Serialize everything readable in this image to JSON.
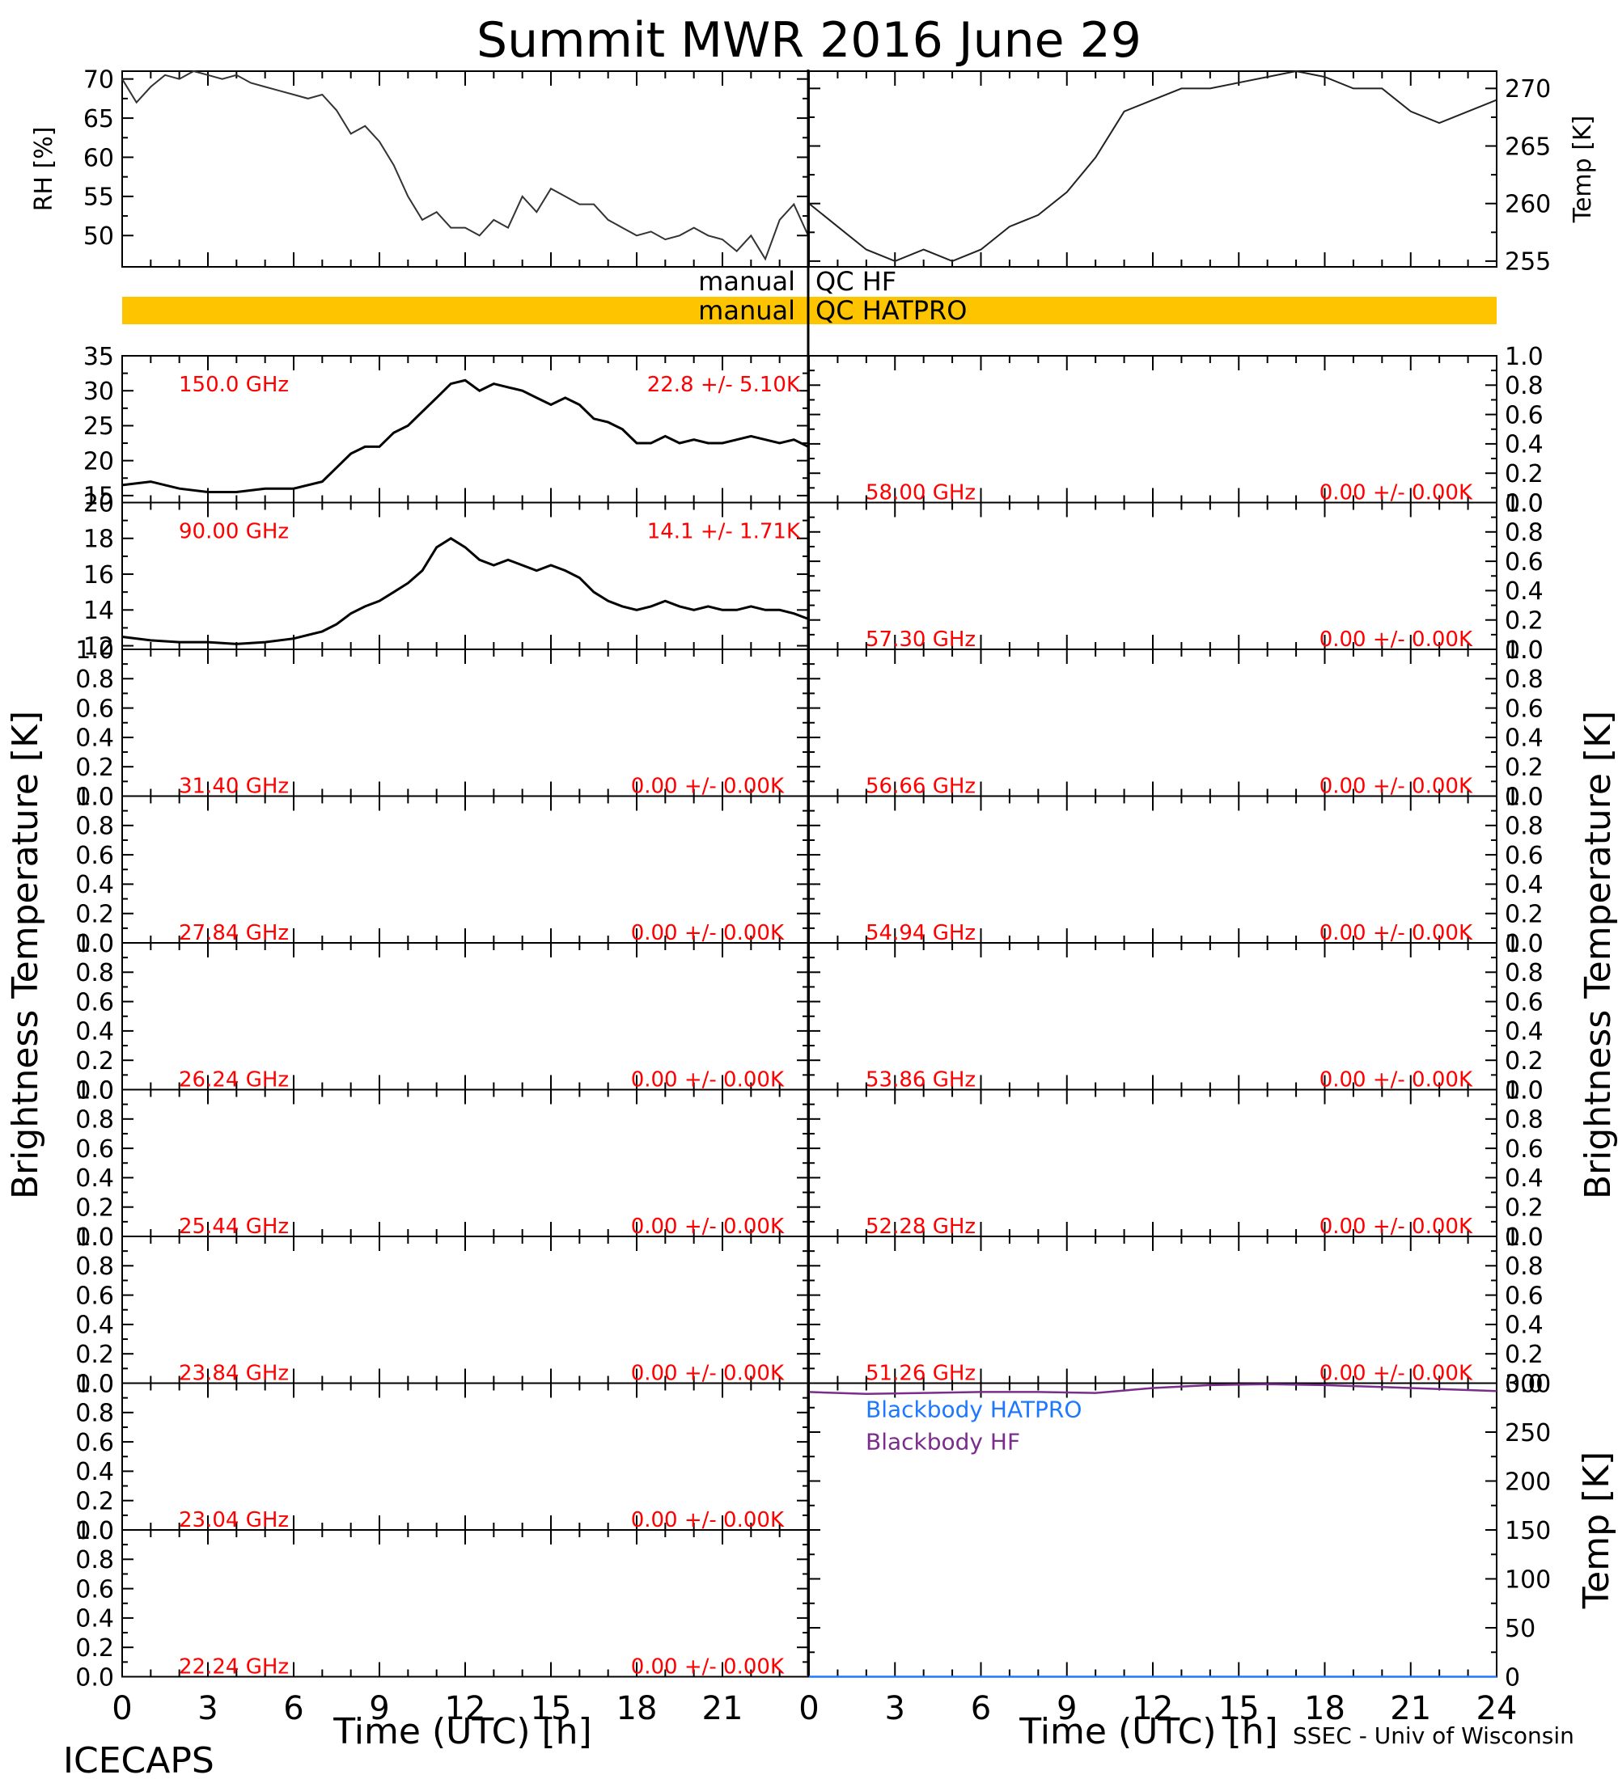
{
  "chart_data": {
    "type": "line",
    "title": "Summit MWR 2016 June 29",
    "footer_left": "ICECAPS",
    "footer_right": "SSEC - Univ of Wisconsin",
    "x_ticks": [
      "0",
      "3",
      "6",
      "9",
      "12",
      "15",
      "18",
      "21"
    ],
    "x_ticks_right": [
      "0",
      "3",
      "6",
      "9",
      "12",
      "15",
      "18",
      "21",
      "24"
    ],
    "xlabel": "Time (UTC) [h]",
    "xlim": [
      0,
      24
    ],
    "ylabel_bt": "Brightness Temperature [K]",
    "met": {
      "rh": {
        "ylabel": "RH [%]",
        "ylim": [
          46,
          71
        ],
        "ticks": [
          "70",
          "65",
          "60",
          "55",
          "50"
        ],
        "x": [
          0,
          0.5,
          1,
          1.5,
          2,
          2.5,
          3,
          3.5,
          4,
          4.5,
          5,
          5.5,
          6,
          6.5,
          7,
          7.5,
          8,
          8.5,
          9,
          9.5,
          10,
          10.5,
          11,
          11.5,
          12,
          12.5,
          13,
          13.5,
          14,
          14.5,
          15,
          15.5,
          16,
          16.5,
          17,
          17.5,
          18,
          18.5,
          19,
          19.5,
          20,
          20.5,
          21,
          21.5,
          22,
          22.5,
          23,
          23.5,
          24
        ],
        "values": [
          70,
          67,
          69,
          70.5,
          70,
          71,
          70.5,
          70,
          70.5,
          69.5,
          69,
          68.5,
          68,
          67.5,
          68,
          66,
          63,
          64,
          62,
          59,
          55,
          52,
          53,
          51,
          51,
          50,
          52,
          51,
          55,
          53,
          56,
          55,
          54,
          54,
          52,
          51,
          50,
          50.5,
          49.5,
          50,
          51,
          50,
          49.5,
          48,
          50,
          47,
          52,
          54,
          50
        ]
      },
      "temp": {
        "ylabel": "Temp [K]",
        "ylim": [
          254.5,
          271.5
        ],
        "ticks": [
          "270",
          "265",
          "260",
          "255"
        ],
        "x": [
          0,
          1,
          2,
          3,
          4,
          5,
          6,
          7,
          8,
          9,
          10,
          11,
          12,
          13,
          14,
          15,
          16,
          17,
          18,
          19,
          20,
          21,
          22,
          23,
          24
        ],
        "values": [
          260,
          258,
          256,
          255,
          256,
          255,
          256,
          258,
          259,
          261,
          264,
          268,
          269,
          270,
          270,
          270.5,
          271,
          271.5,
          271,
          270,
          270,
          268,
          267,
          268,
          269
        ]
      }
    },
    "qc": [
      {
        "label": "manual",
        "name": "QC HF",
        "flag_color": "#ffffff"
      },
      {
        "label": "manual",
        "name": "QC HATPRO",
        "flag_color": "#ffc400"
      }
    ],
    "qc_line_color": "#000000",
    "channels_left": [
      {
        "freq": "150.0 GHz",
        "stat": "22.8 +/-  5.10K",
        "ylim": [
          14,
          35
        ],
        "ticks": [
          "35",
          "30",
          "25",
          "20",
          "15"
        ],
        "x": [
          0,
          1,
          2,
          3,
          4,
          5,
          6,
          7,
          7.5,
          8,
          8.5,
          9,
          9.5,
          10,
          10.5,
          11,
          11.5,
          12,
          12.5,
          13,
          13.5,
          14,
          14.5,
          15,
          15.5,
          16,
          16.5,
          17,
          17.5,
          18,
          18.5,
          19,
          19.5,
          20,
          20.5,
          21,
          21.5,
          22,
          22.5,
          23,
          23.5,
          24
        ],
        "values": [
          16.5,
          17,
          16,
          15.5,
          15.5,
          16,
          16,
          17,
          19,
          21,
          22,
          22,
          24,
          25,
          27,
          29,
          31,
          31.5,
          30,
          31,
          30.5,
          30,
          29,
          28,
          29,
          28,
          26,
          25.5,
          24.5,
          22.5,
          22.5,
          23.5,
          22.5,
          23,
          22.5,
          22.5,
          23,
          23.5,
          23,
          22.5,
          23,
          22
        ]
      },
      {
        "freq": "90.00 GHz",
        "stat": "14.1 +/-  1.71K",
        "ylim": [
          11.8,
          20
        ],
        "ticks": [
          "20",
          "18",
          "16",
          "14",
          "12"
        ],
        "x": [
          0,
          1,
          2,
          3,
          4,
          5,
          6,
          7,
          7.5,
          8,
          8.5,
          9,
          9.5,
          10,
          10.5,
          11,
          11.5,
          12,
          12.5,
          13,
          13.5,
          14,
          14.5,
          15,
          15.5,
          16,
          16.5,
          17,
          17.5,
          18,
          18.5,
          19,
          19.5,
          20,
          20.5,
          21,
          21.5,
          22,
          22.5,
          23,
          23.5,
          24
        ],
        "values": [
          12.5,
          12.3,
          12.2,
          12.2,
          12.1,
          12.2,
          12.4,
          12.8,
          13.2,
          13.8,
          14.2,
          14.5,
          15,
          15.5,
          16.2,
          17.5,
          18,
          17.5,
          16.8,
          16.5,
          16.8,
          16.5,
          16.2,
          16.5,
          16.2,
          15.8,
          15,
          14.5,
          14.2,
          14,
          14.2,
          14.5,
          14.2,
          14,
          14.2,
          14,
          14,
          14.2,
          14,
          14,
          13.8,
          13.5
        ]
      },
      {
        "freq": "31.40 GHz",
        "stat": "0.00 +/-  0.00K",
        "ylim": [
          0,
          1
        ],
        "ticks": [
          "1.0",
          "0.8",
          "0.6",
          "0.4",
          "0.2",
          "0.0"
        ]
      },
      {
        "freq": "27.84 GHz",
        "stat": "0.00 +/-  0.00K",
        "ylim": [
          0,
          1
        ],
        "ticks": [
          "1.0",
          "0.8",
          "0.6",
          "0.4",
          "0.2",
          "0.0"
        ]
      },
      {
        "freq": "26.24 GHz",
        "stat": "0.00 +/-  0.00K",
        "ylim": [
          0,
          1
        ],
        "ticks": [
          "1.0",
          "0.8",
          "0.6",
          "0.4",
          "0.2",
          "0.0"
        ]
      },
      {
        "freq": "25.44 GHz",
        "stat": "0.00 +/-  0.00K",
        "ylim": [
          0,
          1
        ],
        "ticks": [
          "1.0",
          "0.8",
          "0.6",
          "0.4",
          "0.2",
          "0.0"
        ]
      },
      {
        "freq": "23.84 GHz",
        "stat": "0.00 +/-  0.00K",
        "ylim": [
          0,
          1
        ],
        "ticks": [
          "1.0",
          "0.8",
          "0.6",
          "0.4",
          "0.2",
          "0.0"
        ]
      },
      {
        "freq": "23.04 GHz",
        "stat": "0.00 +/-  0.00K",
        "ylim": [
          0,
          1
        ],
        "ticks": [
          "1.0",
          "0.8",
          "0.6",
          "0.4",
          "0.2",
          "0.0"
        ]
      },
      {
        "freq": "22.24 GHz",
        "stat": "0.00 +/-  0.00K",
        "ylim": [
          0,
          1
        ],
        "ticks": [
          "1.0",
          "0.8",
          "0.6",
          "0.4",
          "0.2",
          "0.0"
        ]
      }
    ],
    "channels_right": [
      {
        "freq": "58.00 GHz",
        "stat": "0.00 +/-  0.00K",
        "ylim": [
          0,
          1
        ],
        "ticks": [
          "1.0",
          "0.8",
          "0.6",
          "0.4",
          "0.2",
          "0.0"
        ]
      },
      {
        "freq": "57.30 GHz",
        "stat": "0.00 +/-  0.00K",
        "ylim": [
          0,
          1
        ],
        "ticks": [
          "1.0",
          "0.8",
          "0.6",
          "0.4",
          "0.2",
          "0.0"
        ]
      },
      {
        "freq": "56.66 GHz",
        "stat": "0.00 +/-  0.00K",
        "ylim": [
          0,
          1
        ],
        "ticks": [
          "1.0",
          "0.8",
          "0.6",
          "0.4",
          "0.2",
          "0.0"
        ]
      },
      {
        "freq": "54.94 GHz",
        "stat": "0.00 +/-  0.00K",
        "ylim": [
          0,
          1
        ],
        "ticks": [
          "1.0",
          "0.8",
          "0.6",
          "0.4",
          "0.2",
          "0.0"
        ]
      },
      {
        "freq": "53.86 GHz",
        "stat": "0.00 +/-  0.00K",
        "ylim": [
          0,
          1
        ],
        "ticks": [
          "1.0",
          "0.8",
          "0.6",
          "0.4",
          "0.2",
          "0.0"
        ]
      },
      {
        "freq": "52.28 GHz",
        "stat": "0.00 +/-  0.00K",
        "ylim": [
          0,
          1
        ],
        "ticks": [
          "1.0",
          "0.8",
          "0.6",
          "0.4",
          "0.2",
          "0.0"
        ]
      },
      {
        "freq": "51.26 GHz",
        "stat": "0.00 +/-  0.00K",
        "ylim": [
          0,
          1
        ],
        "ticks": [
          "1.0",
          "0.8",
          "0.6",
          "0.4",
          "0.2",
          "0.0"
        ]
      }
    ],
    "blackbody": {
      "ylabel": "Temp [K]",
      "ylim": [
        0,
        300
      ],
      "ticks": [
        "300",
        "250",
        "200",
        "150",
        "100",
        "50",
        "0"
      ],
      "series": [
        {
          "name": "Blackbody HATPRO",
          "color": "#1e78ff",
          "x": [
            0,
            24
          ],
          "values": [
            0,
            0
          ]
        },
        {
          "name": "Blackbody HF",
          "color": "#7a2d8c",
          "x": [
            0,
            2,
            4,
            6,
            8,
            10,
            12,
            14,
            16,
            18,
            20,
            22,
            24
          ],
          "values": [
            291,
            289,
            290,
            291,
            291,
            290,
            295,
            298,
            299,
            298,
            296,
            294,
            292
          ]
        }
      ]
    },
    "label_color": "#ff0000"
  }
}
